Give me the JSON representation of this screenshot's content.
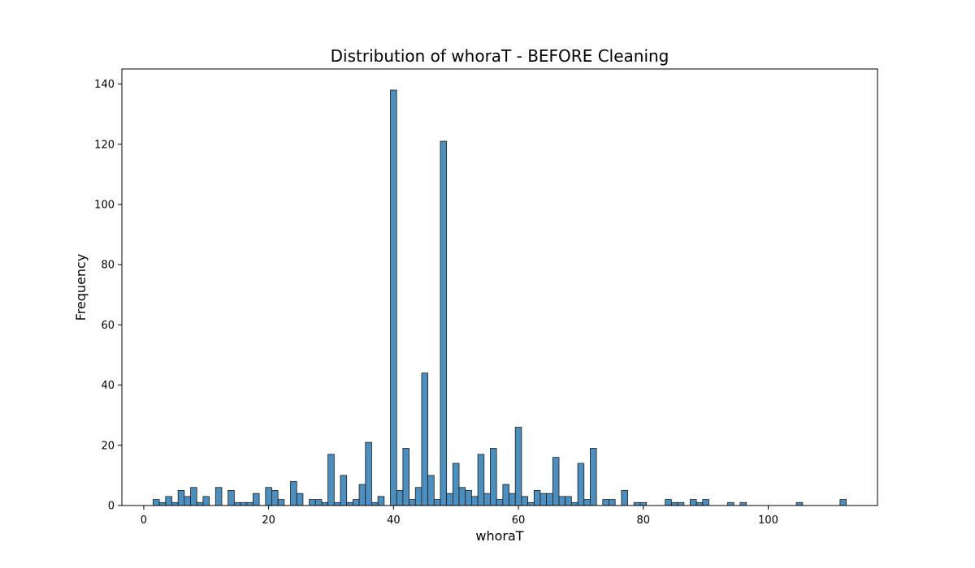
{
  "chart_data": {
    "type": "bar",
    "title": "Distribution of whoraT - BEFORE Cleaning",
    "xlabel": "whoraT",
    "ylabel": "Frequency",
    "xlim": [
      -3.5,
      117.5
    ],
    "ylim": [
      0,
      145
    ],
    "xticks": [
      0,
      20,
      40,
      60,
      80,
      100
    ],
    "yticks": [
      0,
      20,
      40,
      60,
      80,
      100,
      120,
      140
    ],
    "grid": false,
    "bar_color": "#4c8fbf",
    "bar_edge_color": "#1c1c1c",
    "bins": [
      {
        "x": 2,
        "value": 2
      },
      {
        "x": 3,
        "value": 1
      },
      {
        "x": 4,
        "value": 3
      },
      {
        "x": 5,
        "value": 1
      },
      {
        "x": 6,
        "value": 5
      },
      {
        "x": 7,
        "value": 3
      },
      {
        "x": 8,
        "value": 6
      },
      {
        "x": 9,
        "value": 1
      },
      {
        "x": 10,
        "value": 3
      },
      {
        "x": 12,
        "value": 6
      },
      {
        "x": 14,
        "value": 5
      },
      {
        "x": 15,
        "value": 1
      },
      {
        "x": 16,
        "value": 1
      },
      {
        "x": 17,
        "value": 1
      },
      {
        "x": 18,
        "value": 4
      },
      {
        "x": 20,
        "value": 6
      },
      {
        "x": 21,
        "value": 5
      },
      {
        "x": 22,
        "value": 2
      },
      {
        "x": 24,
        "value": 8
      },
      {
        "x": 25,
        "value": 4
      },
      {
        "x": 27,
        "value": 2
      },
      {
        "x": 28,
        "value": 2
      },
      {
        "x": 29,
        "value": 1
      },
      {
        "x": 30,
        "value": 17
      },
      {
        "x": 31,
        "value": 1
      },
      {
        "x": 32,
        "value": 10
      },
      {
        "x": 33,
        "value": 1
      },
      {
        "x": 34,
        "value": 2
      },
      {
        "x": 35,
        "value": 7
      },
      {
        "x": 36,
        "value": 21
      },
      {
        "x": 37,
        "value": 1
      },
      {
        "x": 38,
        "value": 3
      },
      {
        "x": 40,
        "value": 138
      },
      {
        "x": 41,
        "value": 5
      },
      {
        "x": 42,
        "value": 19
      },
      {
        "x": 43,
        "value": 2
      },
      {
        "x": 44,
        "value": 6
      },
      {
        "x": 45,
        "value": 44
      },
      {
        "x": 46,
        "value": 10
      },
      {
        "x": 47,
        "value": 2
      },
      {
        "x": 48,
        "value": 121
      },
      {
        "x": 49,
        "value": 4
      },
      {
        "x": 50,
        "value": 14
      },
      {
        "x": 51,
        "value": 6
      },
      {
        "x": 52,
        "value": 5
      },
      {
        "x": 53,
        "value": 3
      },
      {
        "x": 54,
        "value": 17
      },
      {
        "x": 55,
        "value": 4
      },
      {
        "x": 56,
        "value": 19
      },
      {
        "x": 57,
        "value": 2
      },
      {
        "x": 58,
        "value": 7
      },
      {
        "x": 59,
        "value": 4
      },
      {
        "x": 60,
        "value": 26
      },
      {
        "x": 61,
        "value": 3
      },
      {
        "x": 62,
        "value": 1
      },
      {
        "x": 63,
        "value": 5
      },
      {
        "x": 64,
        "value": 4
      },
      {
        "x": 65,
        "value": 4
      },
      {
        "x": 66,
        "value": 16
      },
      {
        "x": 67,
        "value": 3
      },
      {
        "x": 68,
        "value": 3
      },
      {
        "x": 69,
        "value": 1
      },
      {
        "x": 70,
        "value": 14
      },
      {
        "x": 71,
        "value": 2
      },
      {
        "x": 72,
        "value": 19
      },
      {
        "x": 74,
        "value": 2
      },
      {
        "x": 75,
        "value": 2
      },
      {
        "x": 77,
        "value": 5
      },
      {
        "x": 79,
        "value": 1
      },
      {
        "x": 80,
        "value": 1
      },
      {
        "x": 84,
        "value": 2
      },
      {
        "x": 85,
        "value": 1
      },
      {
        "x": 86,
        "value": 1
      },
      {
        "x": 88,
        "value": 2
      },
      {
        "x": 89,
        "value": 1
      },
      {
        "x": 90,
        "value": 2
      },
      {
        "x": 94,
        "value": 1
      },
      {
        "x": 96,
        "value": 1
      },
      {
        "x": 105,
        "value": 1
      },
      {
        "x": 112,
        "value": 2
      }
    ]
  }
}
